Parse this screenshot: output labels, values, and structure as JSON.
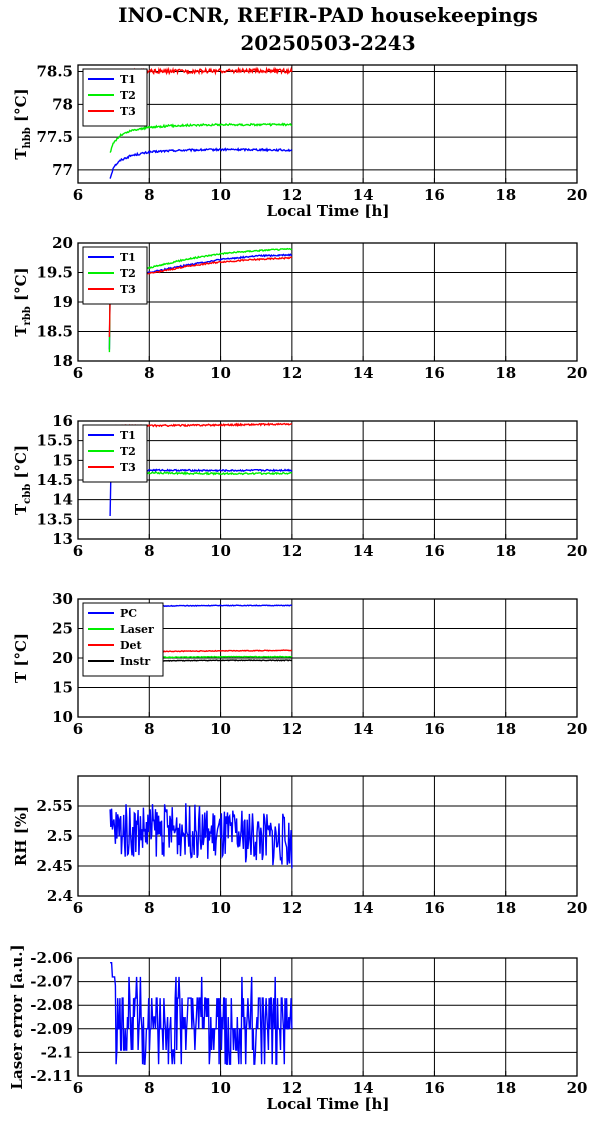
{
  "title": {
    "line1": "INO-CNR, REFIR-PAD housekeepings",
    "line2": "20250503-2243"
  },
  "chart_data": [
    {
      "type": "line",
      "ylabel_main": "T",
      "ylabel_sub": "hbb",
      "ylabel_unit": " [°C]",
      "xlabel": "Local Time [h]",
      "xlim": [
        6,
        20
      ],
      "ylim": [
        76.8,
        78.6
      ],
      "x_ticks": [
        6,
        8,
        10,
        12,
        14,
        16,
        18,
        20
      ],
      "y_ticks": [
        77,
        77.5,
        78,
        78.5
      ],
      "y_tick_labels": [
        "77",
        "77.5",
        "78",
        "78.5"
      ],
      "grid": true,
      "legend_position": "top-left",
      "series": [
        {
          "name": "T1",
          "color": "#0000ff",
          "x": [
            6.9,
            7.0,
            7.2,
            7.5,
            8.0,
            8.5,
            9.0,
            10.0,
            11.0,
            12.0
          ],
          "y": [
            76.87,
            77.05,
            77.15,
            77.22,
            77.27,
            77.29,
            77.3,
            77.31,
            77.31,
            77.3
          ],
          "noise": 0.015
        },
        {
          "name": "T2",
          "color": "#00ee00",
          "x": [
            6.9,
            7.0,
            7.2,
            7.5,
            8.0,
            8.5,
            9.0,
            10.0,
            11.0,
            12.0
          ],
          "y": [
            77.26,
            77.42,
            77.53,
            77.6,
            77.65,
            77.67,
            77.68,
            77.69,
            77.69,
            77.69
          ],
          "noise": 0.015
        },
        {
          "name": "T3",
          "color": "#ff0000",
          "x": [
            7.0,
            8.0,
            10.0,
            12.0
          ],
          "y": [
            78.5,
            78.5,
            78.51,
            78.51
          ],
          "noise": 0.03
        }
      ]
    },
    {
      "type": "line",
      "ylabel_main": "T",
      "ylabel_sub": "rbb",
      "ylabel_unit": " [°C]",
      "xlabel": "",
      "xlim": [
        6,
        20
      ],
      "ylim": [
        18,
        20
      ],
      "x_ticks": [
        6,
        8,
        10,
        12,
        14,
        16,
        18,
        20
      ],
      "y_ticks": [
        18,
        18.5,
        19,
        19.5,
        20
      ],
      "y_tick_labels": [
        "18",
        "18.5",
        "19",
        "19.5",
        "20"
      ],
      "grid": true,
      "legend_position": "top-left",
      "series": [
        {
          "name": "T1",
          "color": "#0000ff",
          "x": [
            6.88,
            6.9,
            7.0,
            7.5,
            8.0,
            9.0,
            10.0,
            11.0,
            12.0
          ],
          "y": [
            18.2,
            19.2,
            19.3,
            19.4,
            19.5,
            19.62,
            19.72,
            19.78,
            19.8
          ],
          "noise": 0.012
        },
        {
          "name": "T2",
          "color": "#00ee00",
          "x": [
            6.88,
            6.9,
            7.0,
            7.5,
            8.0,
            9.0,
            10.0,
            11.0,
            12.0
          ],
          "y": [
            18.15,
            19.25,
            19.35,
            19.45,
            19.58,
            19.72,
            19.82,
            19.87,
            19.9
          ],
          "noise": 0.012
        },
        {
          "name": "T3",
          "color": "#ff0000",
          "x": [
            6.88,
            6.9,
            7.0,
            7.5,
            8.0,
            9.0,
            10.0,
            11.0,
            12.0
          ],
          "y": [
            18.4,
            19.15,
            19.25,
            19.38,
            19.48,
            19.6,
            19.68,
            19.72,
            19.75
          ],
          "noise": 0.012
        }
      ]
    },
    {
      "type": "line",
      "ylabel_main": "T",
      "ylabel_sub": "cbb",
      "ylabel_unit": " [°C]",
      "xlabel": "",
      "xlim": [
        6,
        20
      ],
      "ylim": [
        13,
        16
      ],
      "x_ticks": [
        6,
        8,
        10,
        12,
        14,
        16,
        18,
        20
      ],
      "y_ticks": [
        13,
        13.5,
        14,
        14.5,
        15,
        15.5,
        16
      ],
      "y_tick_labels": [
        "13",
        "13.5",
        "14",
        "14.5",
        "15",
        "15.5",
        "16"
      ],
      "grid": true,
      "legend_position": "top-left",
      "series": [
        {
          "name": "T1",
          "color": "#0000ff",
          "x": [
            6.9,
            6.92,
            7.0,
            8.0,
            10.0,
            12.0
          ],
          "y": [
            13.6,
            14.55,
            14.72,
            14.75,
            14.74,
            14.75
          ],
          "noise": 0.02
        },
        {
          "name": "T2",
          "color": "#00ee00",
          "x": [
            6.9,
            7.0,
            8.0,
            10.0,
            12.0
          ],
          "y": [
            14.5,
            14.68,
            14.68,
            14.66,
            14.67
          ],
          "noise": 0.02
        },
        {
          "name": "T3",
          "color": "#ff0000",
          "x": [
            6.9,
            7.0,
            8.0,
            10.0,
            12.0
          ],
          "y": [
            15.85,
            15.88,
            15.88,
            15.9,
            15.92
          ],
          "noise": 0.02
        }
      ]
    },
    {
      "type": "line",
      "ylabel_main": "T [°C]",
      "ylabel_sub": "",
      "ylabel_unit": "",
      "xlabel": "",
      "xlim": [
        6,
        20
      ],
      "ylim": [
        10,
        30
      ],
      "x_ticks": [
        6,
        8,
        10,
        12,
        14,
        16,
        18,
        20
      ],
      "y_ticks": [
        10,
        15,
        20,
        25,
        30
      ],
      "y_tick_labels": [
        "10",
        "15",
        "20",
        "25",
        "30"
      ],
      "grid": true,
      "legend_position": "top-left",
      "series": [
        {
          "name": "PC",
          "color": "#0000ff",
          "x": [
            6.9,
            8.0,
            10.0,
            12.0
          ],
          "y": [
            28.5,
            28.8,
            28.9,
            28.9
          ],
          "noise": 0.06
        },
        {
          "name": "Laser",
          "color": "#00ee00",
          "x": [
            6.9,
            8.0,
            10.0,
            12.0
          ],
          "y": [
            20.0,
            20.1,
            20.2,
            20.2
          ],
          "noise": 0.06
        },
        {
          "name": "Det",
          "color": "#ff0000",
          "x": [
            6.9,
            8.0,
            10.0,
            12.0
          ],
          "y": [
            21.0,
            21.1,
            21.2,
            21.3
          ],
          "noise": 0.06
        },
        {
          "name": "Instr",
          "color": "#000000",
          "x": [
            6.9,
            8.0,
            10.0,
            12.0
          ],
          "y": [
            19.4,
            19.5,
            19.6,
            19.6
          ],
          "noise": 0.06
        }
      ]
    },
    {
      "type": "line",
      "ylabel_main": "RH [%]",
      "ylabel_sub": "",
      "ylabel_unit": "",
      "xlabel": "",
      "xlim": [
        6,
        20
      ],
      "ylim": [
        2.4,
        2.6
      ],
      "x_ticks": [
        6,
        8,
        10,
        12,
        14,
        16,
        18,
        20
      ],
      "y_ticks": [
        2.4,
        2.45,
        2.5,
        2.55
      ],
      "y_tick_labels": [
        "2.4",
        "2.45",
        "2.5",
        "2.55"
      ],
      "grid": true,
      "legend_position": "none",
      "series": [
        {
          "color": "#0000ff",
          "x": [
            6.9,
            8.0,
            9.0,
            10.0,
            11.0,
            12.0
          ],
          "y": [
            2.51,
            2.51,
            2.51,
            2.5,
            2.5,
            2.49
          ],
          "noise": 0.045
        }
      ]
    },
    {
      "type": "line",
      "ylabel_main": "Laser error [a.u.]",
      "ylabel_sub": "",
      "ylabel_unit": "",
      "xlabel": "Local Time [h]",
      "xlim": [
        6,
        20
      ],
      "ylim": [
        -2.11,
        -2.06
      ],
      "x_ticks": [
        6,
        8,
        10,
        12,
        14,
        16,
        18,
        20
      ],
      "y_ticks": [
        -2.11,
        -2.1,
        -2.09,
        -2.08,
        -2.07,
        -2.06
      ],
      "y_tick_labels": [
        "-2.11",
        "-2.1",
        "-2.09",
        "-2.08",
        "-2.07",
        "-2.06"
      ],
      "grid": true,
      "legend_position": "none",
      "series": [
        {
          "color": "#0000ff",
          "x": [
            6.9,
            7.1,
            7.3,
            8.0,
            10.0,
            12.0
          ],
          "y": [
            -2.062,
            -2.075,
            -2.085,
            -2.085,
            -2.085,
            -2.085
          ],
          "levels": [
            -2.062,
            -2.068,
            -2.077,
            -2.086,
            -2.095,
            -2.105
          ]
        }
      ]
    }
  ]
}
